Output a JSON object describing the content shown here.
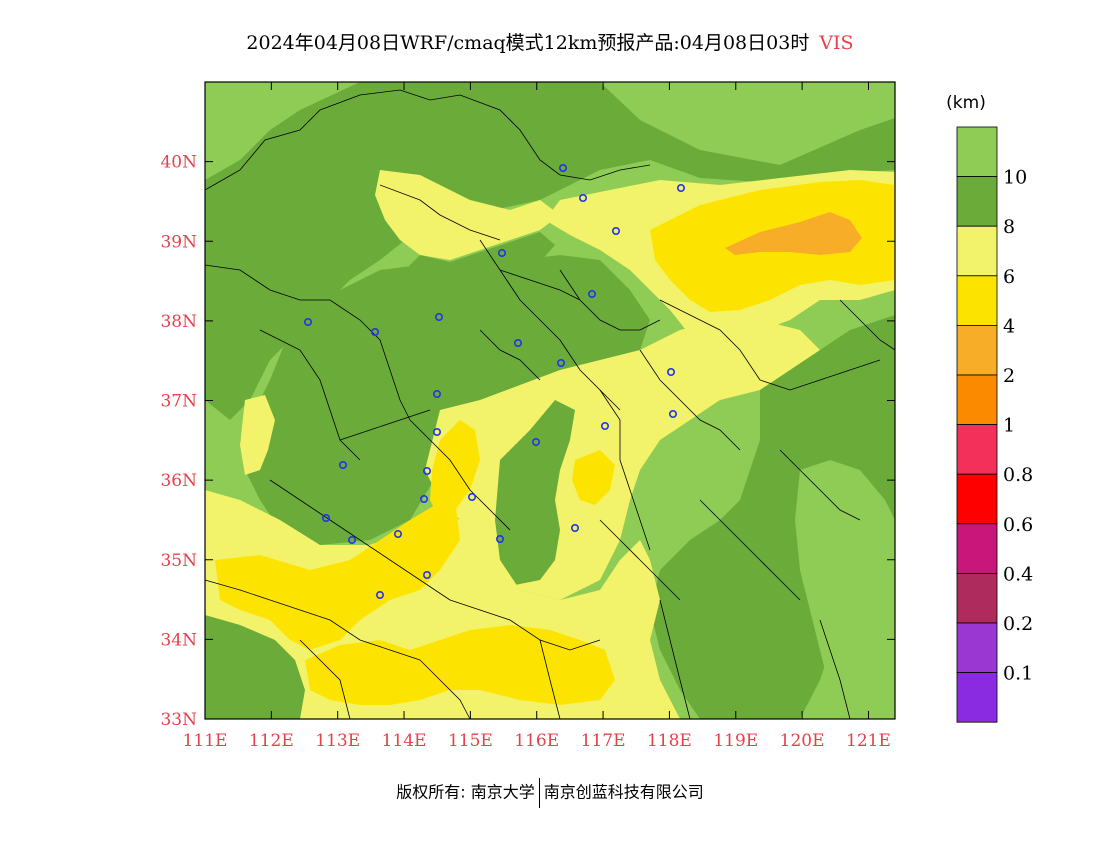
{
  "title": {
    "main": "2024年04月08日WRF/cmaq模式12km预报产品:04月08日03时",
    "variable": "VIS"
  },
  "map": {
    "lat_labels": [
      "40N",
      "39N",
      "38N",
      "37N",
      "36N",
      "35N",
      "34N",
      "33N"
    ],
    "lon_labels": [
      "111E",
      "112E",
      "113E",
      "114E",
      "115E",
      "116E",
      "117E",
      "118E",
      "119E",
      "120E",
      "121E"
    ],
    "label_color": "#e8404a",
    "lon_range": [
      111,
      121.4
    ],
    "lat_range": [
      33,
      41
    ]
  },
  "legend": {
    "unit": "(km)",
    "classes": [
      {
        "label": "10",
        "color": "#8fcc55"
      },
      {
        "label": "8",
        "color": "#6aab3a"
      },
      {
        "label": "6",
        "color": "#f2f36a"
      },
      {
        "label": "4",
        "color": "#fde400"
      },
      {
        "label": "2",
        "color": "#f8ad28"
      },
      {
        "label": "1",
        "color": "#fb8a00"
      },
      {
        "label": "0.8",
        "color": "#f2305a"
      },
      {
        "label": "0.6",
        "color": "#ff0000"
      },
      {
        "label": "0.4",
        "color": "#c8167a"
      },
      {
        "label": "0.2",
        "color": "#ad2b5d"
      },
      {
        "label": "0.1",
        "color": "#9a36d2"
      },
      {
        "label": "",
        "color": "#8a2be2"
      }
    ]
  },
  "footer": {
    "left": "版权所有: 南京大学",
    "right": "南京创蓝科技有限公司"
  }
}
